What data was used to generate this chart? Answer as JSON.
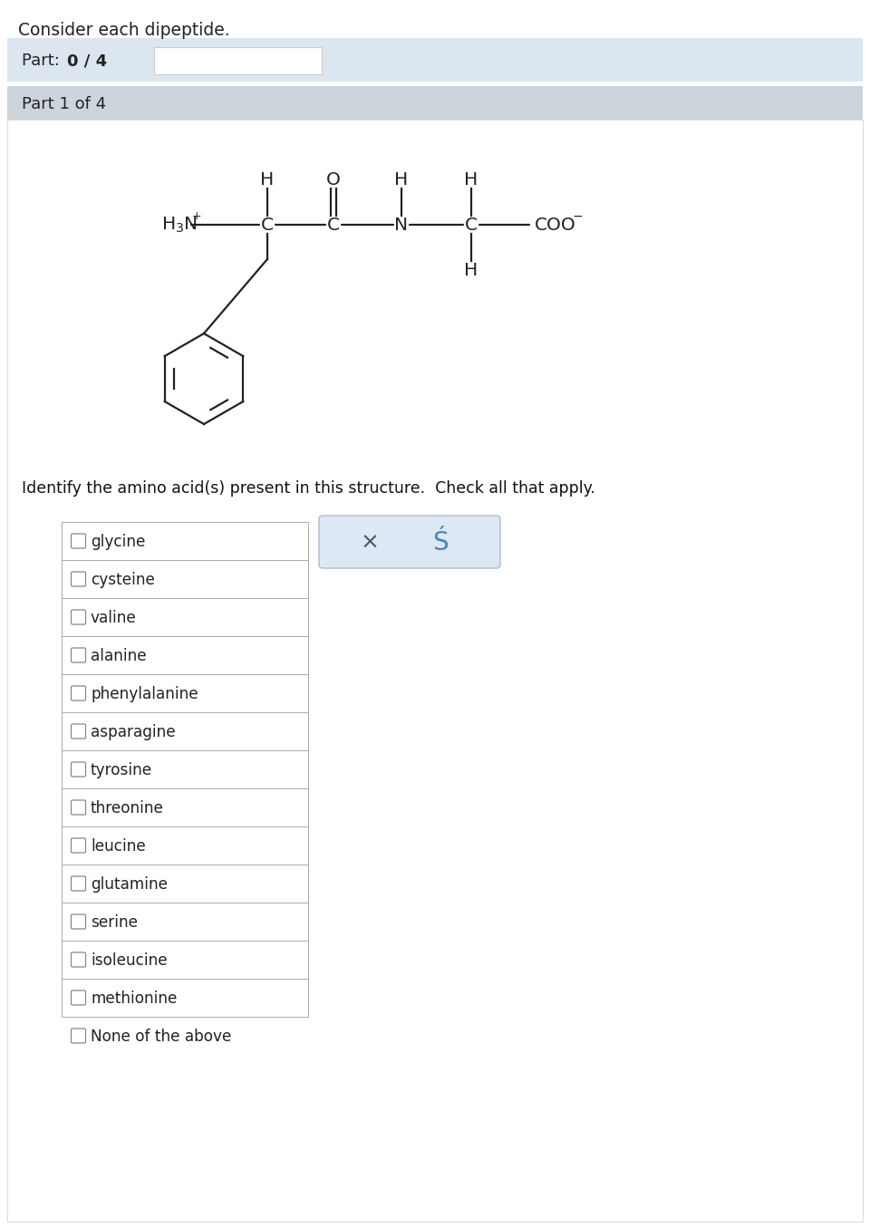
{
  "title": "Consider each dipeptide.",
  "part_label": "Part: ",
  "part_bold": "0 / 4",
  "part1_label": "Part 1 of 4",
  "question": "Identify the amino acid(s) present in this structure.  Check all that apply.",
  "checkboxes": [
    "glycine",
    "cysteine",
    "valine",
    "alanine",
    "phenylalanine",
    "asparagine",
    "tyrosine",
    "threonine",
    "leucine",
    "glutamine",
    "serine",
    "isoleucine",
    "methionine"
  ],
  "none_label": "None of the above",
  "bg_color": "#ffffff",
  "part_bar_color": "#dce6f0",
  "part1_bar_color": "#cdd5dc",
  "checkbox_border": "#aaaaaa",
  "action_box_color": "#dce8f4",
  "action_box_border": "#aabbd0"
}
